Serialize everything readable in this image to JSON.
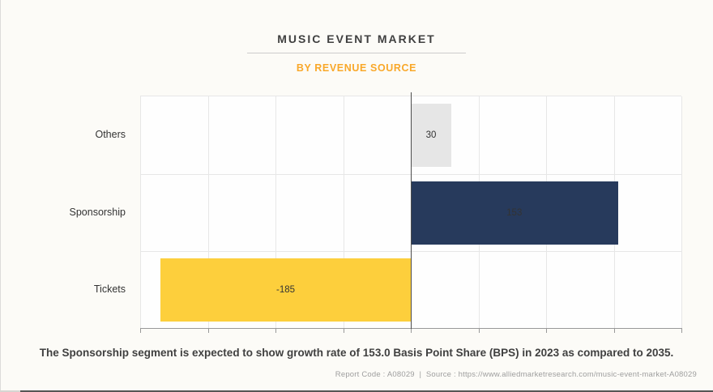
{
  "page": {
    "title": "MUSIC EVENT MARKET",
    "subtitle": "BY REVENUE SOURCE",
    "statement": "The Sponsorship segment is expected to show growth rate of 153.0 Basis Point Share (BPS) in 2023 as compared to 2035.",
    "footer": {
      "report_code": "Report Code : A08029",
      "divider": "  |  ",
      "source": "Source : https://www.alliedmarketresearch.com/music-event-market-A08029"
    }
  },
  "colors": {
    "title_text": "#404040",
    "subtitle_accent": "#F9A82A",
    "zero_line": "#4D4D4D",
    "gridline": "#E7E7E7",
    "axis_line": "#999999"
  },
  "chart_data": {
    "type": "bar",
    "orientation": "horizontal",
    "title": "MUSIC EVENT MARKET",
    "subtitle": "BY REVENUE SOURCE",
    "categories": [
      "Others",
      "Sponsorship",
      "Tickets"
    ],
    "values": [
      30,
      153,
      -185
    ],
    "value_labels": [
      "30",
      "153",
      "-185"
    ],
    "bar_colors": [
      "#E6E6E6",
      "#273A5C",
      "#FDCF3C"
    ],
    "xlim": [
      -200,
      200
    ],
    "grid_step": 50,
    "grid": true,
    "legend": false,
    "x_tick_labels": [],
    "xlabel": "",
    "ylabel": ""
  }
}
